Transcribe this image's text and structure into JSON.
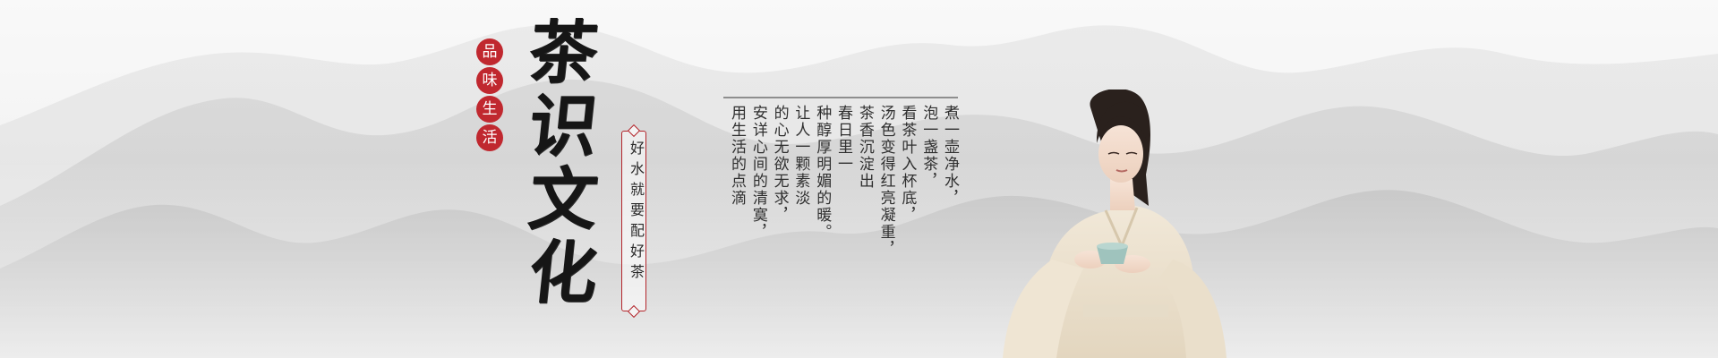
{
  "tagline": [
    "品",
    "味",
    "生",
    "活"
  ],
  "title": [
    "茶",
    "识",
    "文",
    "化"
  ],
  "slogan": "好水就要配好茶",
  "poem": [
    "煮一壶净水，",
    "泡一盏茶，",
    "看茶叶入杯底，",
    "汤色变得红亮凝重，",
    "茶香沉淀出",
    "春日里一",
    "种醇厚明媚的暖。",
    "让人一颗素淡",
    "的心无欲无求，",
    "安详心间的清寞，",
    "用生活的点滴"
  ],
  "colors": {
    "accent_red": "#c0282f",
    "title_ink": "#161616",
    "poem_text": "#2f2f2f",
    "background": "#eeeeee"
  }
}
